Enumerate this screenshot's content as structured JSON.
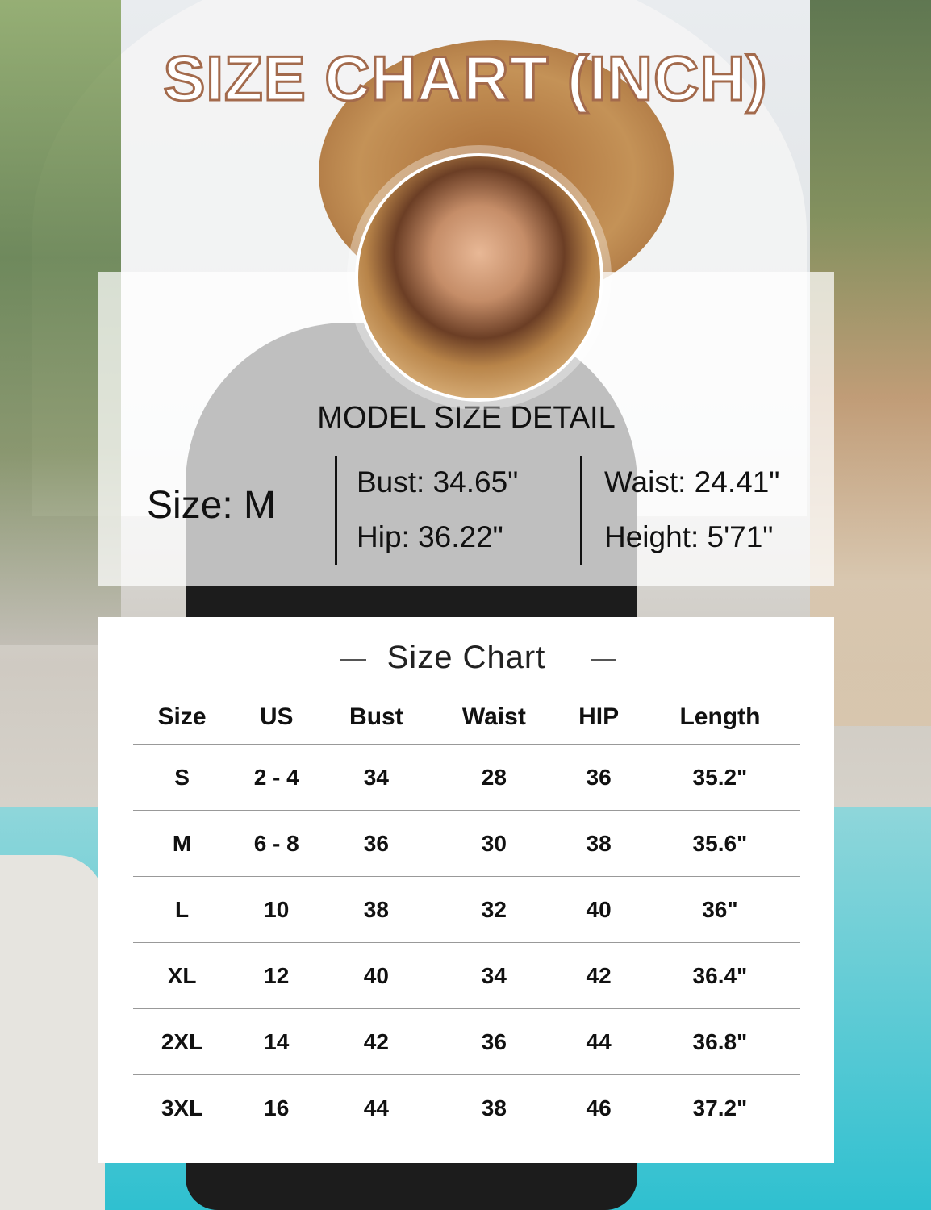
{
  "title": "SIZE CHART (INCH)",
  "model": {
    "heading": "MODEL SIZE DETAIL",
    "size": "Size: M",
    "bust": "Bust: 34.65\"",
    "hip": "Hip: 36.22\"",
    "waist": "Waist: 24.41\"",
    "height": "Height: 5'71\""
  },
  "size_chart": {
    "title": "Size Chart",
    "headers": [
      "Size",
      "US",
      "Bust",
      "Waist",
      "HIP",
      "Length"
    ],
    "rows": [
      [
        "S",
        "2 - 4",
        "34",
        "28",
        "36",
        "35.2\""
      ],
      [
        "M",
        "6 - 8",
        "36",
        "30",
        "38",
        "35.6\""
      ],
      [
        "L",
        "10",
        "38",
        "32",
        "40",
        "36\""
      ],
      [
        "XL",
        "12",
        "40",
        "34",
        "42",
        "36.4\""
      ],
      [
        "2XL",
        "14",
        "42",
        "36",
        "44",
        "36.8\""
      ],
      [
        "3XL",
        "16",
        "44",
        "38",
        "46",
        "37.2\""
      ]
    ]
  },
  "colors": {
    "title_outline": "#a36a4c",
    "panel": "#ffffff",
    "text": "#111111"
  }
}
